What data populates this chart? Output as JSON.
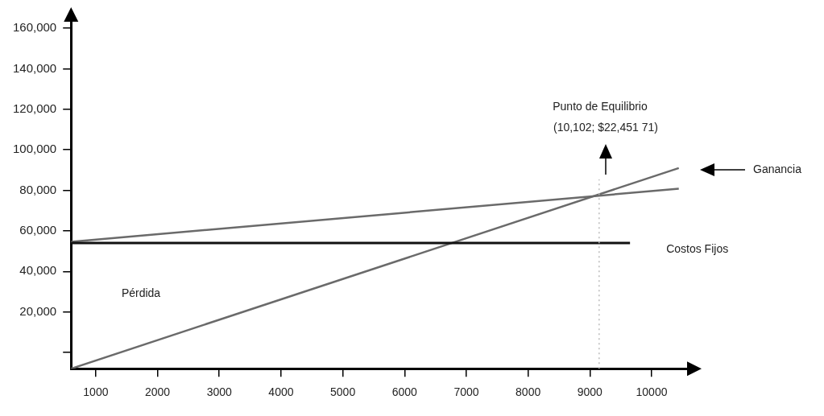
{
  "chart_data": {
    "type": "line",
    "xlim": [
      600,
      10600
    ],
    "xticks": [
      1000,
      2000,
      3000,
      4000,
      5000,
      6000,
      7000,
      8000,
      9000,
      10000
    ],
    "ylim": [
      -8000,
      164000
    ],
    "yticks": [
      {
        "value": 0,
        "label": null
      },
      {
        "value": 20000,
        "label": "20,000"
      },
      {
        "value": 40000,
        "label": "40,000"
      },
      {
        "value": 60000,
        "label": "60,000"
      },
      {
        "value": 80000,
        "label": "80,000"
      },
      {
        "value": 100000,
        "label": "100,000"
      },
      {
        "value": 120000,
        "label": "120,000"
      },
      {
        "value": 140000,
        "label": "140,000"
      },
      {
        "value": 160000,
        "label": "160,000"
      }
    ],
    "grid": false,
    "legend": false,
    "marker": "none",
    "series": [
      {
        "name": "Costos Fijos",
        "color": "#111111",
        "x": [
          600,
          9650
        ],
        "values": [
          54000,
          54000
        ]
      },
      {
        "color": "#6a6a6a",
        "x": [
          600,
          10440
        ],
        "values": [
          54600,
          80800
        ]
      },
      {
        "color": "#6a6a6a",
        "x": [
          600,
          10440
        ],
        "values": [
          -8000,
          91000
        ]
      }
    ],
    "ref_lines": [
      {
        "axis": "x",
        "value": 9150,
        "color": "#bbbbbb",
        "line_style": "dotted"
      }
    ],
    "annotations": [
      "Punto de Equilibrio",
      "(10,102; $22,451 71)",
      "Ganancia",
      "Pérdida"
    ]
  }
}
